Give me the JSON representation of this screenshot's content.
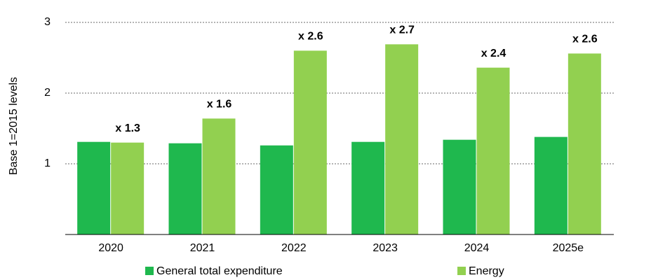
{
  "chart_data": {
    "type": "bar",
    "y_label": "Base 1=2015 levels",
    "categories": [
      "2020",
      "2021",
      "2022",
      "2023",
      "2024",
      "2025e"
    ],
    "series": [
      {
        "name": "General total expenditure",
        "color": "#1fb84e",
        "values": [
          1.31,
          1.29,
          1.26,
          1.31,
          1.34,
          1.38
        ]
      },
      {
        "name": "Energy",
        "color": "#92d050",
        "values": [
          1.3,
          1.64,
          2.6,
          2.69,
          2.36,
          2.56
        ],
        "value_labels": [
          "x 1.3",
          "x 1.6",
          "x 2.6",
          "x 2.7",
          "x 2.4",
          "x 2.6"
        ]
      }
    ],
    "ylim": [
      0,
      3
    ],
    "yticks": [
      1,
      2,
      3
    ],
    "grid": true,
    "legend": "bottom"
  }
}
